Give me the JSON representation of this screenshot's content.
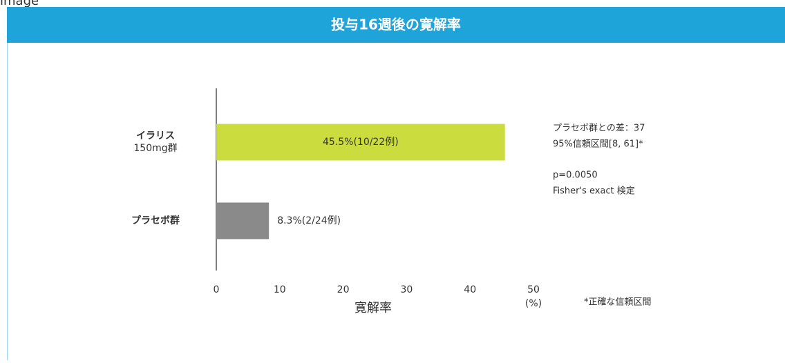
{
  "caption": "image",
  "chart_data": {
    "type": "bar",
    "orientation": "horizontal",
    "title": "投与16週後の寛解率",
    "categories": [
      "イラリス\n150mg群",
      "プラセボ群"
    ],
    "values": [
      45.5,
      8.3
    ],
    "value_labels": [
      "45.5%(10/22例)",
      "8.3%(2/24例)"
    ],
    "colors": [
      "#cbdc3e",
      "#8a8a8a"
    ],
    "xlabel": "寛解率",
    "x_unit": "(%)",
    "xlim": [
      0,
      50
    ],
    "xticks": [
      0,
      10,
      20,
      30,
      40,
      50
    ],
    "grid": false,
    "annotations": [
      "プラセボ群との差：37",
      "95%信頼区間[8, 61]*",
      "p=0.0050",
      "Fisher's exact 検定",
      "*正確な信頼区間"
    ]
  }
}
